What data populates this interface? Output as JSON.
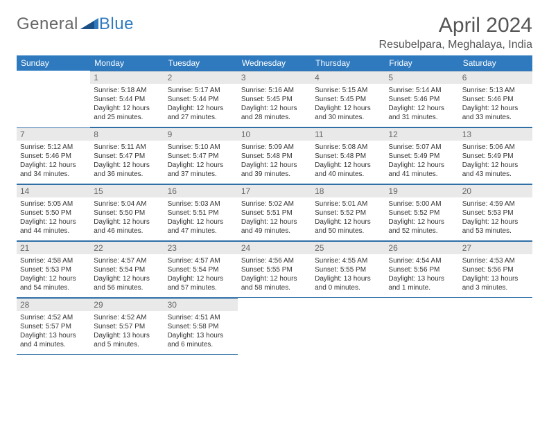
{
  "brand": {
    "part1": "General",
    "part2": "Blue"
  },
  "title": "April 2024",
  "location": "Resubelpara, Meghalaya, India",
  "colors": {
    "header_bg": "#2f7abf",
    "header_text": "#ffffff",
    "daynum_bg": "#e9e9e9",
    "daynum_text": "#666666",
    "cell_border": "#2f6fa6",
    "body_text": "#333333",
    "title_text": "#555555"
  },
  "weekdays": [
    "Sunday",
    "Monday",
    "Tuesday",
    "Wednesday",
    "Thursday",
    "Friday",
    "Saturday"
  ],
  "weeks": [
    [
      null,
      {
        "n": "1",
        "sr": "Sunrise: 5:18 AM",
        "ss": "Sunset: 5:44 PM",
        "dl": "Daylight: 12 hours and 25 minutes."
      },
      {
        "n": "2",
        "sr": "Sunrise: 5:17 AM",
        "ss": "Sunset: 5:44 PM",
        "dl": "Daylight: 12 hours and 27 minutes."
      },
      {
        "n": "3",
        "sr": "Sunrise: 5:16 AM",
        "ss": "Sunset: 5:45 PM",
        "dl": "Daylight: 12 hours and 28 minutes."
      },
      {
        "n": "4",
        "sr": "Sunrise: 5:15 AM",
        "ss": "Sunset: 5:45 PM",
        "dl": "Daylight: 12 hours and 30 minutes."
      },
      {
        "n": "5",
        "sr": "Sunrise: 5:14 AM",
        "ss": "Sunset: 5:46 PM",
        "dl": "Daylight: 12 hours and 31 minutes."
      },
      {
        "n": "6",
        "sr": "Sunrise: 5:13 AM",
        "ss": "Sunset: 5:46 PM",
        "dl": "Daylight: 12 hours and 33 minutes."
      }
    ],
    [
      {
        "n": "7",
        "sr": "Sunrise: 5:12 AM",
        "ss": "Sunset: 5:46 PM",
        "dl": "Daylight: 12 hours and 34 minutes."
      },
      {
        "n": "8",
        "sr": "Sunrise: 5:11 AM",
        "ss": "Sunset: 5:47 PM",
        "dl": "Daylight: 12 hours and 36 minutes."
      },
      {
        "n": "9",
        "sr": "Sunrise: 5:10 AM",
        "ss": "Sunset: 5:47 PM",
        "dl": "Daylight: 12 hours and 37 minutes."
      },
      {
        "n": "10",
        "sr": "Sunrise: 5:09 AM",
        "ss": "Sunset: 5:48 PM",
        "dl": "Daylight: 12 hours and 39 minutes."
      },
      {
        "n": "11",
        "sr": "Sunrise: 5:08 AM",
        "ss": "Sunset: 5:48 PM",
        "dl": "Daylight: 12 hours and 40 minutes."
      },
      {
        "n": "12",
        "sr": "Sunrise: 5:07 AM",
        "ss": "Sunset: 5:49 PM",
        "dl": "Daylight: 12 hours and 41 minutes."
      },
      {
        "n": "13",
        "sr": "Sunrise: 5:06 AM",
        "ss": "Sunset: 5:49 PM",
        "dl": "Daylight: 12 hours and 43 minutes."
      }
    ],
    [
      {
        "n": "14",
        "sr": "Sunrise: 5:05 AM",
        "ss": "Sunset: 5:50 PM",
        "dl": "Daylight: 12 hours and 44 minutes."
      },
      {
        "n": "15",
        "sr": "Sunrise: 5:04 AM",
        "ss": "Sunset: 5:50 PM",
        "dl": "Daylight: 12 hours and 46 minutes."
      },
      {
        "n": "16",
        "sr": "Sunrise: 5:03 AM",
        "ss": "Sunset: 5:51 PM",
        "dl": "Daylight: 12 hours and 47 minutes."
      },
      {
        "n": "17",
        "sr": "Sunrise: 5:02 AM",
        "ss": "Sunset: 5:51 PM",
        "dl": "Daylight: 12 hours and 49 minutes."
      },
      {
        "n": "18",
        "sr": "Sunrise: 5:01 AM",
        "ss": "Sunset: 5:52 PM",
        "dl": "Daylight: 12 hours and 50 minutes."
      },
      {
        "n": "19",
        "sr": "Sunrise: 5:00 AM",
        "ss": "Sunset: 5:52 PM",
        "dl": "Daylight: 12 hours and 52 minutes."
      },
      {
        "n": "20",
        "sr": "Sunrise: 4:59 AM",
        "ss": "Sunset: 5:53 PM",
        "dl": "Daylight: 12 hours and 53 minutes."
      }
    ],
    [
      {
        "n": "21",
        "sr": "Sunrise: 4:58 AM",
        "ss": "Sunset: 5:53 PM",
        "dl": "Daylight: 12 hours and 54 minutes."
      },
      {
        "n": "22",
        "sr": "Sunrise: 4:57 AM",
        "ss": "Sunset: 5:54 PM",
        "dl": "Daylight: 12 hours and 56 minutes."
      },
      {
        "n": "23",
        "sr": "Sunrise: 4:57 AM",
        "ss": "Sunset: 5:54 PM",
        "dl": "Daylight: 12 hours and 57 minutes."
      },
      {
        "n": "24",
        "sr": "Sunrise: 4:56 AM",
        "ss": "Sunset: 5:55 PM",
        "dl": "Daylight: 12 hours and 58 minutes."
      },
      {
        "n": "25",
        "sr": "Sunrise: 4:55 AM",
        "ss": "Sunset: 5:55 PM",
        "dl": "Daylight: 13 hours and 0 minutes."
      },
      {
        "n": "26",
        "sr": "Sunrise: 4:54 AM",
        "ss": "Sunset: 5:56 PM",
        "dl": "Daylight: 13 hours and 1 minute."
      },
      {
        "n": "27",
        "sr": "Sunrise: 4:53 AM",
        "ss": "Sunset: 5:56 PM",
        "dl": "Daylight: 13 hours and 3 minutes."
      }
    ],
    [
      {
        "n": "28",
        "sr": "Sunrise: 4:52 AM",
        "ss": "Sunset: 5:57 PM",
        "dl": "Daylight: 13 hours and 4 minutes."
      },
      {
        "n": "29",
        "sr": "Sunrise: 4:52 AM",
        "ss": "Sunset: 5:57 PM",
        "dl": "Daylight: 13 hours and 5 minutes."
      },
      {
        "n": "30",
        "sr": "Sunrise: 4:51 AM",
        "ss": "Sunset: 5:58 PM",
        "dl": "Daylight: 13 hours and 6 minutes."
      },
      null,
      null,
      null,
      null
    ]
  ]
}
